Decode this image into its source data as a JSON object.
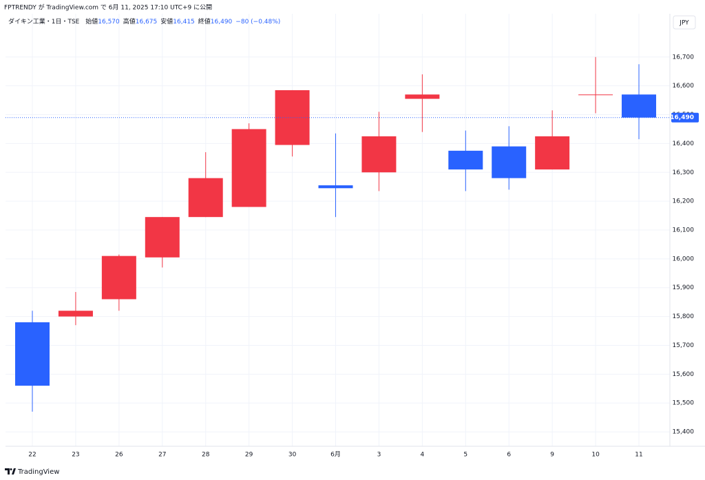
{
  "header": {
    "published": "FPTRENDY が TradingView.com で 6月 11, 2025 17:10 UTC+9 に公開"
  },
  "chart_data": {
    "type": "candlestick",
    "legend": {
      "symbol": "ダイキン工業・1日・TSE",
      "items": [
        {
          "label": "始値",
          "value": "16,570"
        },
        {
          "label": "高値",
          "value": "16,675"
        },
        {
          "label": "安値",
          "value": "16,415"
        },
        {
          "label": "終値",
          "value": "16,490"
        }
      ],
      "change": "−80 (−0.48%)"
    },
    "currency": "JPY",
    "categories": [
      "22",
      "23",
      "26",
      "27",
      "28",
      "29",
      "30",
      "6月",
      "3",
      "4",
      "5",
      "6",
      "9",
      "10",
      "11"
    ],
    "open": [
      15780,
      15800,
      15860,
      16005,
      16145,
      16180,
      16395,
      16255,
      16300,
      16555,
      16375,
      16390,
      16310,
      16570,
      16570
    ],
    "high": [
      15820,
      15885,
      16015,
      16145,
      16370,
      16470,
      16585,
      16435,
      16510,
      16640,
      16445,
      16460,
      16515,
      16700,
      16675
    ],
    "low": [
      15470,
      15770,
      15820,
      15970,
      16145,
      16180,
      16355,
      16145,
      16235,
      16440,
      16235,
      16240,
      16310,
      16505,
      16415
    ],
    "close": [
      15560,
      15820,
      16010,
      16145,
      16280,
      16450,
      16585,
      16245,
      16425,
      16570,
      16310,
      16280,
      16425,
      16570,
      16490
    ],
    "up_color": "#f23645",
    "down_color": "#2962ff",
    "last_price": {
      "value": 16490,
      "label": "16,490"
    },
    "ylim": [
      15350,
      16850
    ],
    "yticks": [
      {
        "value": 15400,
        "label": "15,400"
      },
      {
        "value": 15500,
        "label": "15,500"
      },
      {
        "value": 15600,
        "label": "15,600"
      },
      {
        "value": 15700,
        "label": "15,700"
      },
      {
        "value": 15800,
        "label": "15,800"
      },
      {
        "value": 15900,
        "label": "15,900"
      },
      {
        "value": 16000,
        "label": "16,000"
      },
      {
        "value": 16100,
        "label": "16,100"
      },
      {
        "value": 16200,
        "label": "16,200"
      },
      {
        "value": 16300,
        "label": "16,300"
      },
      {
        "value": 16400,
        "label": "16,400"
      },
      {
        "value": 16500,
        "label": "16,500"
      },
      {
        "value": 16600,
        "label": "16,600"
      },
      {
        "value": 16700,
        "label": "16,700"
      }
    ],
    "grid": true
  },
  "footer": {
    "brand": "TradingView"
  }
}
